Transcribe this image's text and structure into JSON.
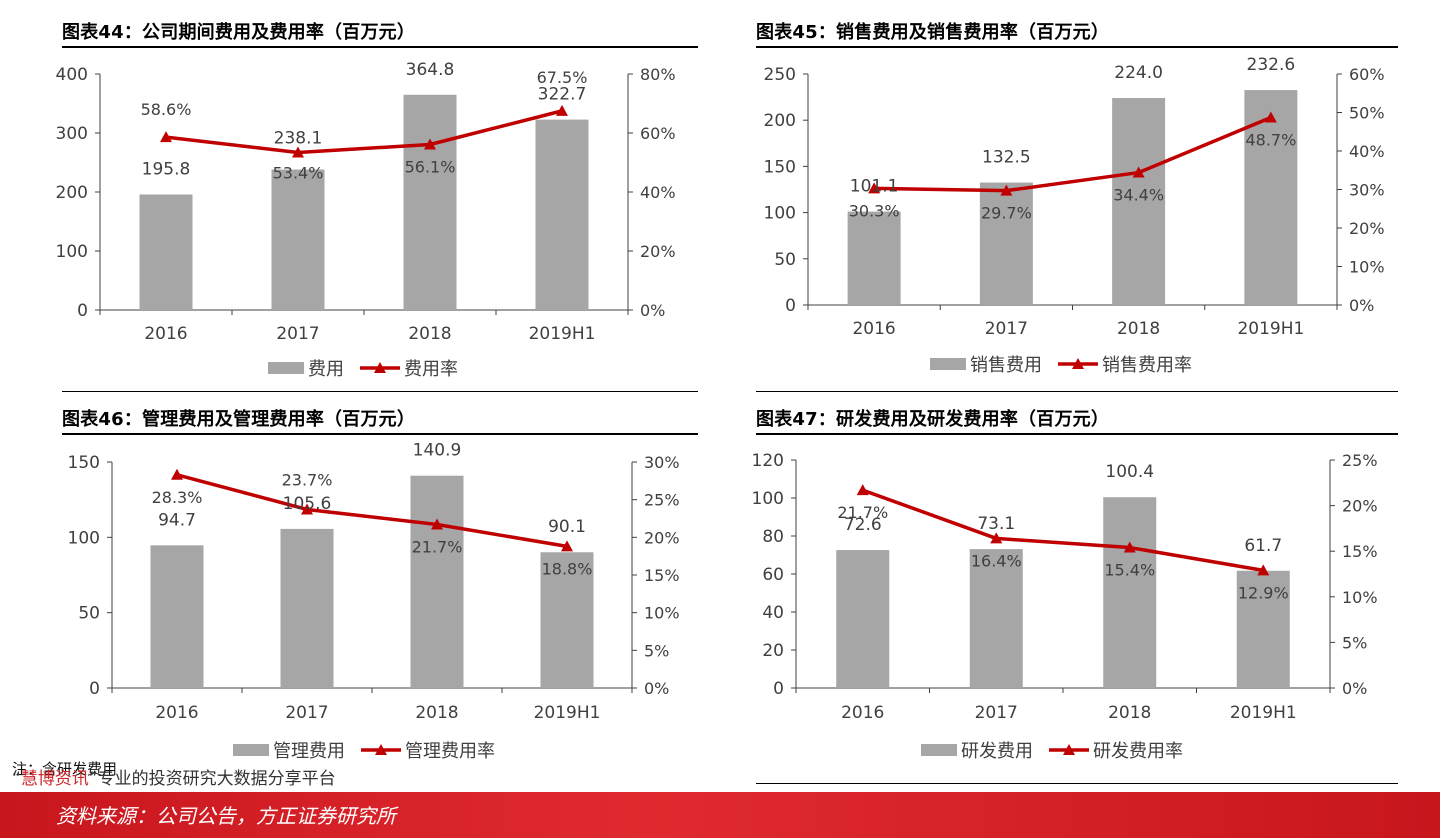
{
  "charts": [
    {
      "id": "c44",
      "title": "图表44：公司期间费用及费用率（百万元）",
      "legend": {
        "bar": "费用",
        "line": "费用率"
      },
      "chart_data": {
        "type": "bar",
        "categories": [
          "2016",
          "2017",
          "2018",
          "2019H1"
        ],
        "series": [
          {
            "name": "费用",
            "type": "bar",
            "axis": "left",
            "values": [
              195.8,
              238.1,
              364.8,
              322.7
            ],
            "labels": [
              "195.8",
              "238.1",
              "364.8",
              "322.7"
            ]
          },
          {
            "name": "费用率",
            "type": "line",
            "axis": "right",
            "values": [
              58.6,
              53.4,
              56.1,
              67.5
            ],
            "labels": [
              "58.6%",
              "53.4%",
              "56.1%",
              "67.5%"
            ]
          }
        ],
        "y_left": {
          "range": [
            0,
            400
          ],
          "ticks": [
            "0",
            "100",
            "200",
            "300",
            "400"
          ]
        },
        "y_right": {
          "range": [
            0,
            80
          ],
          "ticks": [
            "0%",
            "20%",
            "40%",
            "60%",
            "80%"
          ]
        },
        "grid": false,
        "legend_position": "bottom"
      }
    },
    {
      "id": "c45",
      "title": "图表45：销售费用及销售费用率（百万元）",
      "legend": {
        "bar": "销售费用",
        "line": "销售费用率"
      },
      "chart_data": {
        "type": "bar",
        "categories": [
          "2016",
          "2017",
          "2018",
          "2019H1"
        ],
        "series": [
          {
            "name": "销售费用",
            "type": "bar",
            "axis": "left",
            "values": [
              101.1,
              132.5,
              224.0,
              232.6
            ],
            "labels": [
              "101.1",
              "132.5",
              "224.0",
              "232.6"
            ]
          },
          {
            "name": "销售费用率",
            "type": "line",
            "axis": "right",
            "values": [
              30.3,
              29.7,
              34.4,
              48.7
            ],
            "labels": [
              "30.3%",
              "29.7%",
              "34.4%",
              "48.7%"
            ]
          }
        ],
        "y_left": {
          "range": [
            0,
            250
          ],
          "ticks": [
            "0",
            "50",
            "100",
            "150",
            "200",
            "250"
          ]
        },
        "y_right": {
          "range": [
            0,
            60
          ],
          "ticks": [
            "0%",
            "10%",
            "20%",
            "30%",
            "40%",
            "50%",
            "60%"
          ]
        },
        "grid": false,
        "legend_position": "bottom"
      }
    },
    {
      "id": "c46",
      "title": "图表46：管理费用及管理费用率（百万元）",
      "legend": {
        "bar": "管理费用",
        "line": "管理费用率"
      },
      "chart_data": {
        "type": "bar",
        "categories": [
          "2016",
          "2017",
          "2018",
          "2019H1"
        ],
        "series": [
          {
            "name": "管理费用",
            "type": "bar",
            "axis": "left",
            "values": [
              94.7,
              105.6,
              140.9,
              90.1
            ],
            "labels": [
              "94.7",
              "105.6",
              "140.9",
              "90.1"
            ]
          },
          {
            "name": "管理费用率",
            "type": "line",
            "axis": "right",
            "values": [
              28.3,
              23.7,
              21.7,
              18.8
            ],
            "labels": [
              "28.3%",
              "23.7%",
              "21.7%",
              "18.8%"
            ]
          }
        ],
        "y_left": {
          "range": [
            0,
            150
          ],
          "ticks": [
            "0",
            "50",
            "100",
            "150"
          ]
        },
        "y_right": {
          "range": [
            0,
            30
          ],
          "ticks": [
            "0%",
            "5%",
            "10%",
            "15%",
            "20%",
            "25%",
            "30%"
          ]
        },
        "grid": false,
        "legend_position": "bottom"
      }
    },
    {
      "id": "c47",
      "title": "图表47：研发费用及研发费用率（百万元）",
      "legend": {
        "bar": "研发费用",
        "line": "研发费用率"
      },
      "chart_data": {
        "type": "bar",
        "categories": [
          "2016",
          "2017",
          "2018",
          "2019H1"
        ],
        "series": [
          {
            "name": "研发费用",
            "type": "bar",
            "axis": "left",
            "values": [
              72.6,
              73.1,
              100.4,
              61.7
            ],
            "labels": [
              "72.6",
              "73.1",
              "100.4",
              "61.7"
            ]
          },
          {
            "name": "研发费用率",
            "type": "line",
            "axis": "right",
            "values": [
              21.7,
              16.4,
              15.4,
              12.9
            ],
            "labels": [
              "21.7%",
              "16.4%",
              "15.4%",
              "12.9%"
            ]
          }
        ],
        "y_left": {
          "range": [
            0,
            120
          ],
          "ticks": [
            "0",
            "20",
            "40",
            "60",
            "80",
            "100",
            "120"
          ]
        },
        "y_right": {
          "range": [
            0,
            25
          ],
          "ticks": [
            "0%",
            "5%",
            "10%",
            "15%",
            "20%",
            "25%"
          ]
        },
        "grid": false,
        "legend_position": "bottom"
      }
    }
  ],
  "colors": {
    "bar": "#a6a6a6",
    "line": "#c00000",
    "axis": "#404040",
    "text": "#404040"
  },
  "footer": {
    "note": "注：含研发费用",
    "watermark_prefix": "“",
    "watermark_brand": "慧博资讯",
    "watermark_text": "”专业的投资研究大数据分享平台",
    "source": "资料来源：公司公告，方正证券研究所"
  }
}
